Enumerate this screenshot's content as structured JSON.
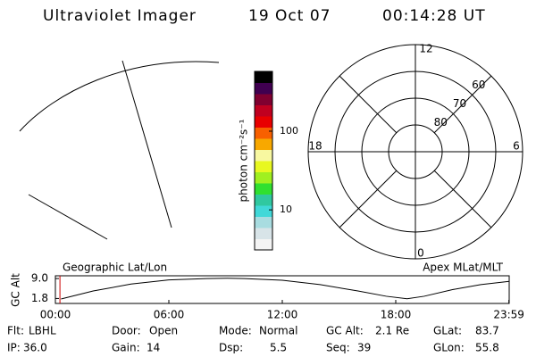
{
  "header": {
    "instrument": "Ultraviolet Imager",
    "date": "19 Oct 07",
    "time": "00:14:28 UT"
  },
  "colorbar": {
    "label": "photon cm⁻²s⁻¹",
    "log": true,
    "range": [
      3.1,
      575
    ],
    "ticks": [
      10,
      100
    ],
    "colors": [
      "#f4f4f4",
      "#d8e4e8",
      "#a8dce0",
      "#40d8d8",
      "#30c8a0",
      "#30e030",
      "#a0f020",
      "#e8f820",
      "#f8f8a0",
      "#f8a800",
      "#f86000",
      "#e80000",
      "#c00020",
      "#800030",
      "#400050",
      "#000000"
    ]
  },
  "polar": {
    "mlt_labels": [
      12,
      6,
      0,
      18
    ],
    "lat_range": [
      50,
      90
    ],
    "lat_rings": [
      60,
      70,
      80
    ]
  },
  "timeline": {
    "y_label": "GC Alt",
    "left_label": "Geographic Lat/Lon",
    "right_label": "Apex MLat/MLT",
    "xlim": [
      0,
      24
    ],
    "xticks": [
      {
        "value": 0,
        "label": "00:00"
      },
      {
        "value": 6,
        "label": "06:00"
      },
      {
        "value": 12,
        "label": "12:00"
      },
      {
        "value": 18,
        "label": "18:00"
      },
      {
        "value": 23.983,
        "label": "23:59"
      }
    ],
    "ylim": [
      0,
      10
    ],
    "yticks": [
      {
        "value": 9,
        "label": "9.0"
      },
      {
        "value": 1.8,
        "label": "1.8"
      }
    ],
    "current_time": 0.241,
    "x": [
      0.3,
      2,
      4,
      6,
      8,
      9.1,
      10,
      12,
      14,
      16,
      17.5,
      18.6,
      19.5,
      21,
      22.5,
      24
    ],
    "values": [
      1.6,
      4.5,
      7.0,
      8.5,
      9.0,
      9.1,
      9.0,
      8.4,
      6.8,
      4.5,
      2.6,
      1.7,
      2.6,
      5.0,
      6.8,
      8.0
    ]
  },
  "footer": [
    {
      "label": "Flt:",
      "value": "LBHL"
    },
    {
      "label": "IP:",
      "value": "36.0"
    },
    {
      "label": "Door:",
      "value": "Open"
    },
    {
      "label": "Gain:",
      "value": "14"
    },
    {
      "label": "Mode:",
      "value": "Normal"
    },
    {
      "label": "Dsp:",
      "value": "5.5"
    },
    {
      "label": "GC Alt:",
      "value": "2.1 Re"
    },
    {
      "label": "Seq:",
      "value": "39"
    },
    {
      "label": "GLat:",
      "value": "83.7"
    },
    {
      "label": "GLon:",
      "value": "55.8"
    }
  ]
}
